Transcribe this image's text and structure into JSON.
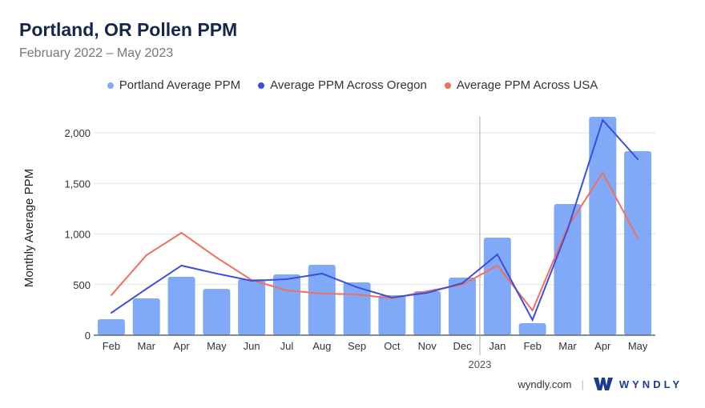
{
  "header": {
    "title": "Portland, OR Pollen PPM",
    "subtitle": "February 2022 – May 2023"
  },
  "footer": {
    "site": "wyndly.com",
    "brand": "WYNDLY"
  },
  "chart_data": {
    "type": "bar",
    "title": "Portland, OR Pollen PPM",
    "subtitle": "February 2022 – May 2023",
    "ylabel": "Monthly Average PPM",
    "xlabel": "",
    "ylim": [
      0,
      2000
    ],
    "yticks": [
      0,
      500,
      1000,
      1500,
      2000
    ],
    "ytick_labels": [
      "0",
      "500",
      "1,000",
      "1,500",
      "2,000"
    ],
    "year_marker": {
      "label": "2023",
      "before_index": 11
    },
    "categories": [
      "Feb",
      "Mar",
      "Apr",
      "May",
      "Jun",
      "Jul",
      "Aug",
      "Sep",
      "Oct",
      "Nov",
      "Dec",
      "Jan",
      "Feb",
      "Mar",
      "Apr",
      "May"
    ],
    "legend_position": "top-center",
    "series": [
      {
        "name": "Portland Average PPM",
        "type": "bar",
        "color": "#80aaf8",
        "values": [
          158,
          364,
          577,
          458,
          553,
          601,
          696,
          522,
          395,
          435,
          569,
          964,
          119,
          1296,
          2158,
          1818
        ]
      },
      {
        "name": "Average PPM Across Oregon",
        "type": "line",
        "color": "#3b4fd8",
        "values": [
          221,
          458,
          688,
          609,
          538,
          553,
          609,
          474,
          372,
          419,
          514,
          798,
          150,
          1043,
          2126,
          1739
        ]
      },
      {
        "name": "Average PPM Across USA",
        "type": "line",
        "color": "#f07060",
        "values": [
          395,
          790,
          1012,
          767,
          545,
          443,
          411,
          403,
          364,
          435,
          498,
          688,
          245,
          1067,
          1605,
          957
        ]
      }
    ]
  }
}
